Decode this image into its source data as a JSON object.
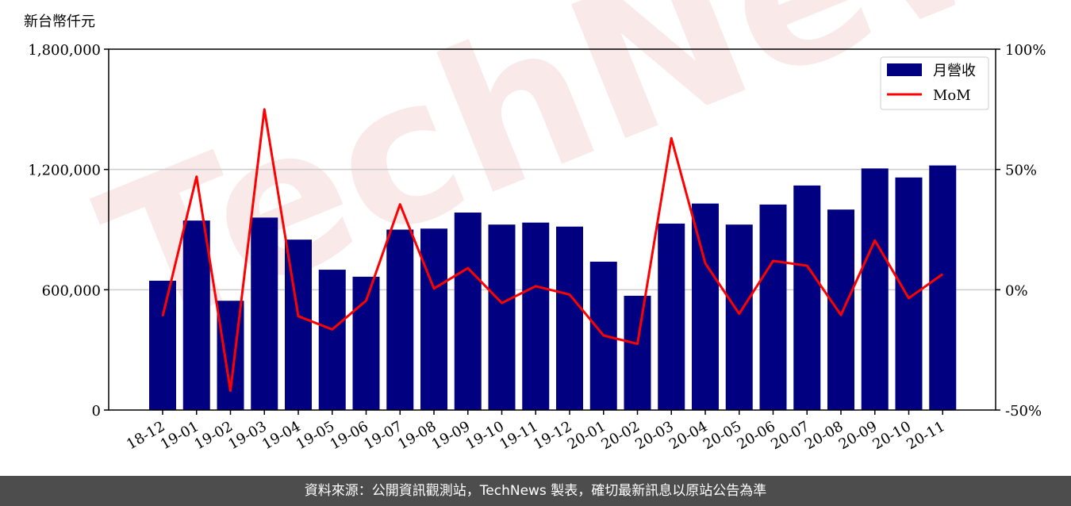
{
  "unit_label": "新台幣仟元",
  "watermark": "TechNews",
  "footer": "資料來源：公開資訊觀測站，TechNews 製表，確切最新訊息以原站公告為準",
  "colors": {
    "bar": "#000080",
    "line": "#ff0000",
    "grid": "#cccccc"
  },
  "chart_data": {
    "type": "bar",
    "categories": [
      "18-12",
      "19-01",
      "19-02",
      "19-03",
      "19-04",
      "19-05",
      "19-06",
      "19-07",
      "19-08",
      "19-09",
      "19-10",
      "19-11",
      "19-12",
      "20-01",
      "20-02",
      "20-03",
      "20-04",
      "20-05",
      "20-06",
      "20-07",
      "20-08",
      "20-09",
      "20-10",
      "20-11"
    ],
    "series": [
      {
        "name": "月營收",
        "type": "bar",
        "axis": "left",
        "values": [
          645000,
          945000,
          545000,
          960000,
          850000,
          700000,
          665000,
          900000,
          905000,
          985000,
          925000,
          935000,
          915000,
          740000,
          570000,
          930000,
          1030000,
          925000,
          1025000,
          1120000,
          1000000,
          1205000,
          1160000,
          1220000
        ]
      },
      {
        "name": "MoM",
        "type": "line",
        "axis": "right",
        "values": [
          -11,
          47,
          -42,
          75,
          -11,
          -16.5,
          -4.5,
          35.5,
          0.5,
          9,
          -5.5,
          1.5,
          -2,
          -19,
          -22.5,
          63,
          11,
          -10,
          12,
          10,
          -10.5,
          20.5,
          -3.5,
          6.5
        ]
      }
    ],
    "y_left": {
      "ticks": [
        0,
        600000,
        1200000,
        1800000
      ],
      "labels": [
        "0",
        "600,000",
        "1,200,000",
        "1,800,000"
      ],
      "ylim": [
        0,
        1800000
      ]
    },
    "y_right": {
      "ticks": [
        -50,
        0,
        50,
        100
      ],
      "labels": [
        "-50%",
        "0%",
        "50%",
        "100%"
      ],
      "ylim": [
        -50,
        100
      ]
    },
    "grid": "horizontal",
    "legend": {
      "placement": "top-right",
      "entries": [
        "月營收",
        "MoM"
      ]
    }
  }
}
